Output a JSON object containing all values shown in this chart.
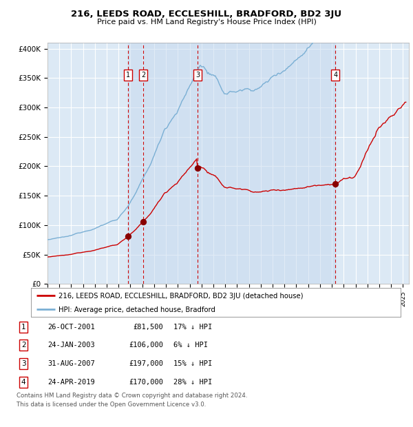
{
  "title": "216, LEEDS ROAD, ECCLESHILL, BRADFORD, BD2 3JU",
  "subtitle": "Price paid vs. HM Land Registry's House Price Index (HPI)",
  "legend_line1": "216, LEEDS ROAD, ECCLESHILL, BRADFORD, BD2 3JU (detached house)",
  "legend_line2": "HPI: Average price, detached house, Bradford",
  "footer1": "Contains HM Land Registry data © Crown copyright and database right 2024.",
  "footer2": "This data is licensed under the Open Government Licence v3.0.",
  "table": [
    {
      "num": "1",
      "date": "26-OCT-2001",
      "price": "£81,500",
      "pct": "17% ↓ HPI"
    },
    {
      "num": "2",
      "date": "24-JAN-2003",
      "price": "£106,000",
      "pct": "6% ↓ HPI"
    },
    {
      "num": "3",
      "date": "31-AUG-2007",
      "price": "£197,000",
      "pct": "15% ↓ HPI"
    },
    {
      "num": "4",
      "date": "24-APR-2019",
      "price": "£170,000",
      "pct": "28% ↓ HPI"
    }
  ],
  "sale_dates_decimal": [
    2001.8,
    2003.07,
    2007.66,
    2019.3
  ],
  "sale_prices": [
    81500,
    106000,
    197000,
    170000
  ],
  "vline_x": [
    2001.8,
    2003.07,
    2007.66,
    2019.3
  ],
  "ylim": [
    0,
    410000
  ],
  "xlim_start": 1995.0,
  "xlim_end": 2025.5,
  "background_color": "#dce9f5",
  "grid_color": "#ffffff",
  "red_line_color": "#cc0000",
  "blue_line_color": "#7aafd4",
  "vline_color": "#cc0000",
  "sale_marker_color": "#880000",
  "box_edge_color": "#cc0000",
  "yticks": [
    0,
    50000,
    100000,
    150000,
    200000,
    250000,
    300000,
    350000,
    400000
  ],
  "ytick_labels": [
    "£0",
    "£50K",
    "£100K",
    "£150K",
    "£200K",
    "£250K",
    "£300K",
    "£350K",
    "£400K"
  ]
}
